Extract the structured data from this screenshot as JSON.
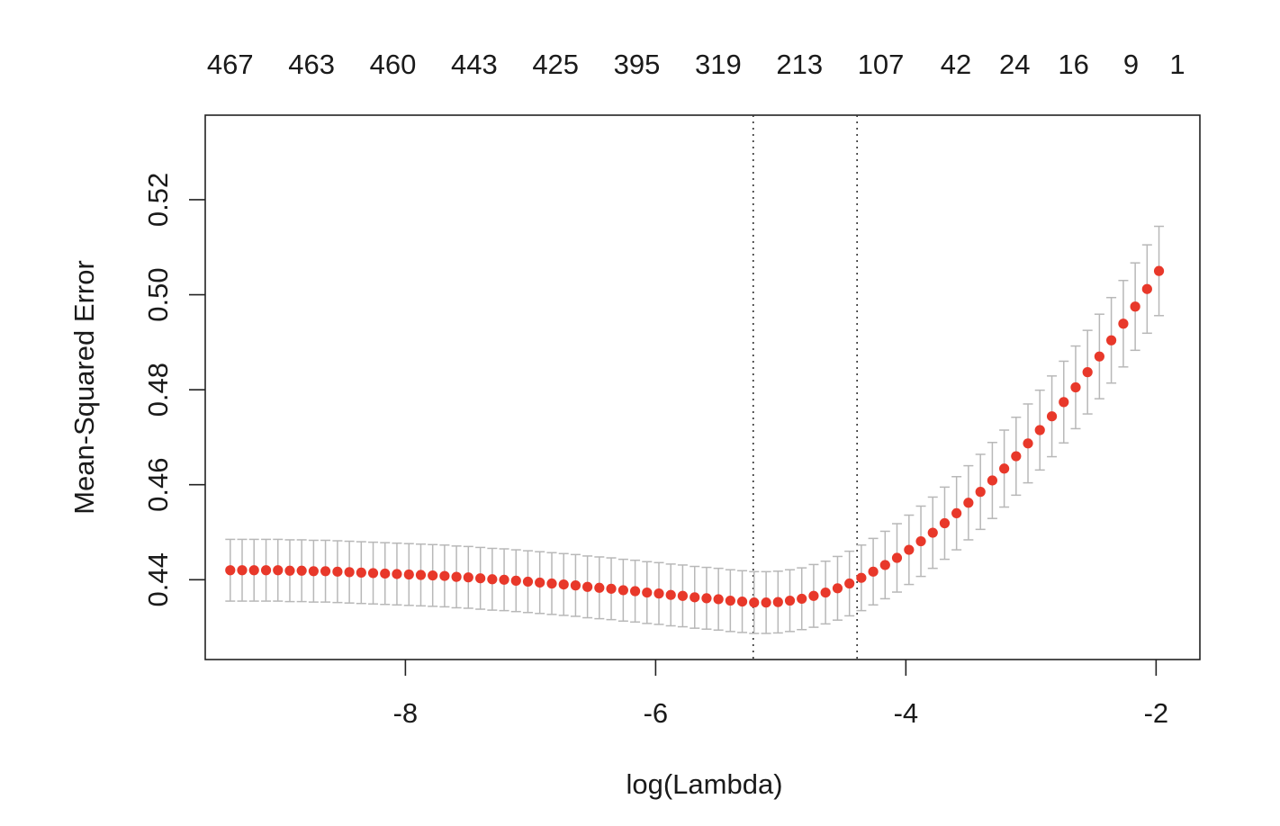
{
  "chart_data": {
    "type": "scatter",
    "title": "",
    "xlabel": "log(Lambda)",
    "ylabel": "Mean-Squared Error",
    "xlim": [
      -9.6,
      -1.65
    ],
    "ylim": [
      0.4232,
      0.5378
    ],
    "x_ticks": [
      -8,
      -6,
      -4,
      -2
    ],
    "x_tick_labels": [
      "-8",
      "-6",
      "-4",
      "-2"
    ],
    "y_ticks": [
      0.44,
      0.46,
      0.48,
      0.5,
      0.52
    ],
    "y_tick_labels": [
      "0.44",
      "0.46",
      "0.48",
      "0.50",
      "0.52"
    ],
    "top_axis": {
      "positions": [
        -9.4,
        -8.75,
        -8.1,
        -7.45,
        -6.8,
        -6.15,
        -5.5,
        -4.85,
        -4.2,
        -3.6,
        -3.13,
        -2.66,
        -2.2,
        -1.83
      ],
      "labels": [
        "467",
        "463",
        "460",
        "443",
        "425",
        "395",
        "319",
        "213",
        "107",
        "42",
        "24",
        "16",
        "9",
        "1"
      ]
    },
    "vlines": [
      -5.22,
      -4.39
    ],
    "series": [
      {
        "x": [
          -9.4,
          -9.305,
          -9.21,
          -9.114,
          -9.019,
          -8.924,
          -8.829,
          -8.734,
          -8.639,
          -8.543,
          -8.448,
          -8.353,
          -8.258,
          -8.163,
          -8.068,
          -7.972,
          -7.877,
          -7.782,
          -7.687,
          -7.592,
          -7.497,
          -7.401,
          -7.306,
          -7.211,
          -7.116,
          -7.021,
          -6.926,
          -6.83,
          -6.735,
          -6.64,
          -6.545,
          -6.45,
          -6.355,
          -6.259,
          -6.164,
          -6.069,
          -5.974,
          -5.879,
          -5.784,
          -5.688,
          -5.593,
          -5.498,
          -5.403,
          -5.308,
          -5.213,
          -5.117,
          -5.022,
          -4.927,
          -4.832,
          -4.737,
          -4.642,
          -4.546,
          -4.451,
          -4.356,
          -4.261,
          -4.166,
          -4.071,
          -3.975,
          -3.88,
          -3.785,
          -3.69,
          -3.595,
          -3.5,
          -3.404,
          -3.309,
          -3.214,
          -3.119,
          -3.024,
          -2.929,
          -2.833,
          -2.738,
          -2.643,
          -2.548,
          -2.453,
          -2.358,
          -2.262,
          -2.167,
          -2.072,
          -1.977
        ],
        "y": [
          0.442,
          0.442,
          0.442,
          0.442,
          0.442,
          0.4419,
          0.4419,
          0.4418,
          0.4418,
          0.4417,
          0.4416,
          0.4415,
          0.4414,
          0.4413,
          0.4412,
          0.4411,
          0.441,
          0.4409,
          0.4408,
          0.4406,
          0.4405,
          0.4403,
          0.4401,
          0.44,
          0.4398,
          0.4396,
          0.4394,
          0.4392,
          0.439,
          0.4388,
          0.4385,
          0.4383,
          0.4381,
          0.4378,
          0.4376,
          0.4373,
          0.4371,
          0.4368,
          0.4366,
          0.4363,
          0.4361,
          0.4359,
          0.4356,
          0.4354,
          0.4352,
          0.4352,
          0.4353,
          0.4356,
          0.436,
          0.4366,
          0.4373,
          0.4382,
          0.4392,
          0.4404,
          0.4417,
          0.4431,
          0.4446,
          0.4463,
          0.4481,
          0.4499,
          0.4519,
          0.454,
          0.4562,
          0.4585,
          0.4609,
          0.4634,
          0.466,
          0.4687,
          0.4715,
          0.4744,
          0.4774,
          0.4805,
          0.4837,
          0.487,
          0.4904,
          0.4939,
          0.4975,
          0.5012,
          0.505
        ],
        "se": [
          0.0065,
          0.0065,
          0.0065,
          0.0065,
          0.0065,
          0.0065,
          0.0065,
          0.0065,
          0.0065,
          0.0065,
          0.0065,
          0.0065,
          0.0065,
          0.0065,
          0.0065,
          0.0065,
          0.0065,
          0.0065,
          0.0065,
          0.0065,
          0.0065,
          0.0065,
          0.0065,
          0.0065,
          0.0065,
          0.0065,
          0.0065,
          0.0065,
          0.0065,
          0.0065,
          0.0065,
          0.0065,
          0.0065,
          0.0065,
          0.0065,
          0.0065,
          0.0065,
          0.0065,
          0.0065,
          0.0065,
          0.0065,
          0.0065,
          0.0065,
          0.0065,
          0.0065,
          0.0065,
          0.0065,
          0.0065,
          0.0065,
          0.0066,
          0.0066,
          0.0067,
          0.0068,
          0.0069,
          0.007,
          0.0071,
          0.0072,
          0.0073,
          0.0074,
          0.0075,
          0.0076,
          0.0077,
          0.0078,
          0.0079,
          0.008,
          0.0081,
          0.0082,
          0.0083,
          0.0084,
          0.0085,
          0.0086,
          0.0087,
          0.0088,
          0.0089,
          0.009,
          0.0091,
          0.0092,
          0.0093,
          0.0094
        ]
      }
    ],
    "grid": false,
    "point_color": "#e8382a",
    "errorbar_color": "#b8b8b8",
    "frame_color": "#222222"
  }
}
